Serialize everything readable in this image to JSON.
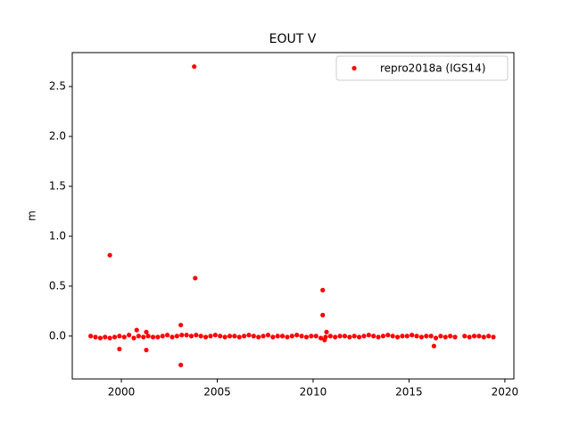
{
  "chart_data": {
    "type": "scatter",
    "title": "EOUT V",
    "y_label": "m",
    "xlim": [
      1997.44,
      2020.47
    ],
    "ylim": [
      -0.43,
      2.84
    ],
    "xticks": [
      2000,
      2005,
      2010,
      2015,
      2020
    ],
    "yticks": [
      {
        "value": 0,
        "label": "0.0"
      },
      {
        "value": 0.5,
        "label": "0.5"
      },
      {
        "value": 1,
        "label": "1.0"
      },
      {
        "value": 1.5,
        "label": "1.5"
      },
      {
        "value": 2,
        "label": "2.0"
      },
      {
        "value": 2.5,
        "label": "2.5"
      }
    ],
    "legend_position": "upper right",
    "series": [
      {
        "name": "repro2018a (IGS14)",
        "color": "#ff0000",
        "x": [
          1998.4,
          1998.65,
          1998.9,
          1999.15,
          1999.4,
          1999.65,
          1999.9,
          2000.15,
          2000.4,
          2000.65,
          2000.9,
          2001.15,
          2001.4,
          2001.65,
          2001.9,
          2002.15,
          2002.4,
          2002.65,
          2002.9,
          2003.15,
          2003.4,
          2003.65,
          2003.9,
          2004.15,
          2004.4,
          2004.65,
          2004.9,
          2005.15,
          2005.4,
          2005.65,
          2005.9,
          2006.15,
          2006.4,
          2006.65,
          2006.9,
          2007.15,
          2007.4,
          2007.65,
          2007.9,
          2008.15,
          2008.4,
          2008.65,
          2008.9,
          2009.15,
          2009.4,
          2009.65,
          2009.9,
          2010.15,
          2010.4,
          2010.65,
          2010.9,
          2011.15,
          2011.4,
          2011.65,
          2011.9,
          2012.15,
          2012.4,
          2012.65,
          2012.9,
          2013.15,
          2013.4,
          2013.65,
          2013.9,
          2014.15,
          2014.4,
          2014.65,
          2014.9,
          2015.15,
          2015.4,
          2015.65,
          2015.9,
          2016.15,
          2016.4,
          2016.65,
          2016.9,
          2017.15,
          2017.4,
          2017.9,
          2018.15,
          2018.4,
          2018.65,
          2018.9,
          2019.15,
          2019.4,
          1999.4,
          2003.8,
          2003.85,
          2003.1,
          2003.1,
          1999.9,
          2001.3,
          2010.5,
          2010.5,
          2010.7,
          2016.3,
          2000.8,
          2001.3,
          2010.6
        ],
        "values": [
          0.0,
          -0.01,
          -0.02,
          -0.01,
          -0.02,
          -0.01,
          0.0,
          -0.01,
          0.01,
          -0.02,
          0.0,
          -0.01,
          0.0,
          -0.01,
          -0.01,
          0.0,
          0.01,
          -0.01,
          0.0,
          0.01,
          0.01,
          0.0,
          0.01,
          0.0,
          -0.01,
          0.0,
          0.01,
          0.0,
          -0.01,
          0.0,
          0.0,
          -0.01,
          0.0,
          0.01,
          0.0,
          -0.01,
          0.0,
          0.01,
          -0.01,
          0.0,
          0.0,
          -0.01,
          0.0,
          0.01,
          0.0,
          -0.01,
          0.0,
          0.0,
          -0.02,
          -0.01,
          0.0,
          -0.01,
          0.0,
          0.0,
          -0.01,
          0.0,
          -0.01,
          0.0,
          0.01,
          0.0,
          -0.01,
          0.0,
          0.01,
          0.0,
          -0.01,
          0.0,
          0.0,
          0.01,
          0.0,
          -0.01,
          0.0,
          0.0,
          -0.02,
          0.0,
          -0.01,
          0.0,
          -0.01,
          0.0,
          -0.01,
          0.0,
          0.0,
          -0.01,
          0.0,
          -0.01,
          0.81,
          2.7,
          0.58,
          0.11,
          -0.29,
          -0.13,
          -0.14,
          0.46,
          0.21,
          0.04,
          -0.1,
          0.06,
          0.04,
          -0.04
        ]
      }
    ]
  }
}
